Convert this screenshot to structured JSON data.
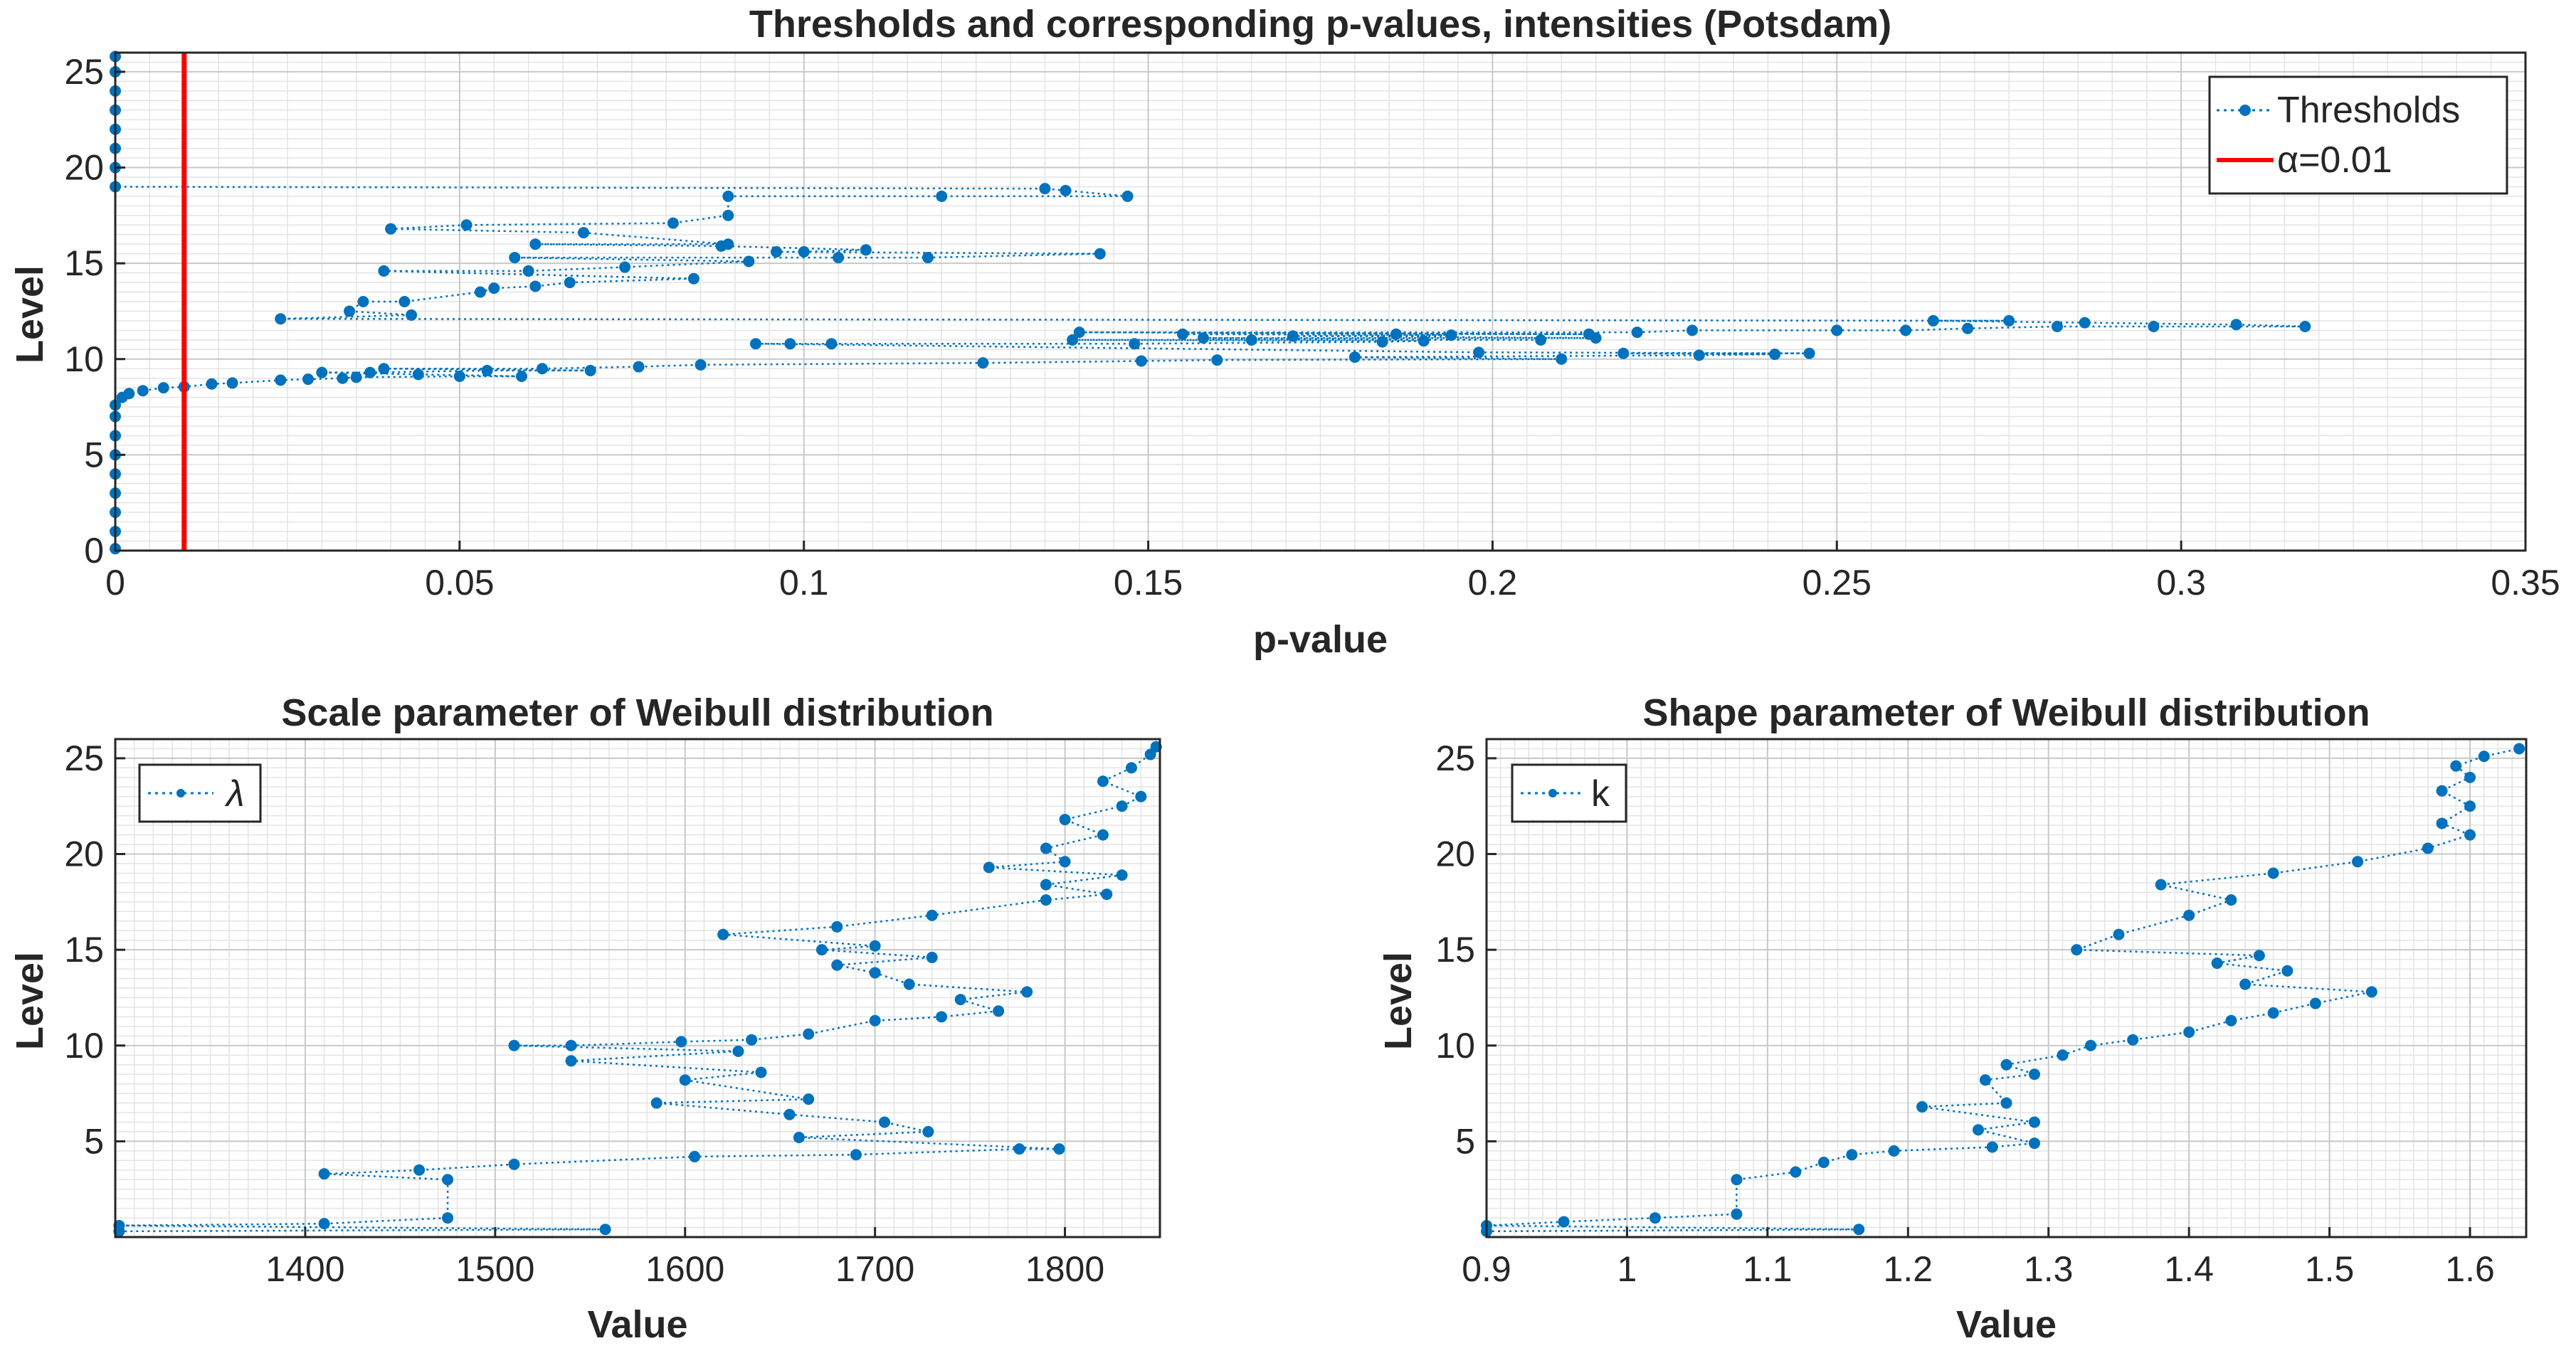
{
  "chart_data": [
    {
      "type": "scatter",
      "title": "Thresholds and corresponding p-values, intensities (Potsdam)",
      "xlabel": "p-value",
      "ylabel": "Level",
      "xlim": [
        0,
        0.35
      ],
      "ylim": [
        0,
        26
      ],
      "xticks": [
        0,
        0.05,
        0.1,
        0.15,
        0.2,
        0.25,
        0.3,
        0.35
      ],
      "xtick_labels": [
        "0",
        "0.05",
        "0.1",
        "0.15",
        "0.2",
        "0.25",
        "0.3",
        "0.35"
      ],
      "yticks": [
        0,
        5,
        10,
        15,
        20,
        25
      ],
      "ytick_labels": [
        "0",
        "5",
        "10",
        "15",
        "20",
        "25"
      ],
      "grid": true,
      "legend_position": "top-right",
      "series": [
        {
          "name": "Thresholds",
          "color": "#0072BD",
          "style": "dotted-line-with-markers",
          "points": [
            [
              0,
              0.1
            ],
            [
              0,
              1
            ],
            [
              0,
              2
            ],
            [
              0,
              3
            ],
            [
              0,
              4
            ],
            [
              0,
              5
            ],
            [
              0,
              6
            ],
            [
              0,
              7
            ],
            [
              0,
              7.6
            ],
            [
              0.001,
              8.0
            ],
            [
              0.002,
              8.2
            ],
            [
              0.004,
              8.35
            ],
            [
              0.007,
              8.5
            ],
            [
              0.01,
              8.55
            ],
            [
              0.014,
              8.7
            ],
            [
              0.017,
              8.75
            ],
            [
              0.024,
              8.9
            ],
            [
              0.028,
              8.95
            ],
            [
              0.03,
              9.3
            ],
            [
              0.033,
              9.0
            ],
            [
              0.035,
              9.05
            ],
            [
              0.037,
              9.3
            ],
            [
              0.039,
              9.5
            ],
            [
              0.044,
              9.2
            ],
            [
              0.05,
              9.1
            ],
            [
              0.054,
              9.4
            ],
            [
              0.059,
              9.1
            ],
            [
              0.062,
              9.5
            ],
            [
              0.069,
              9.4
            ],
            [
              0.076,
              9.6
            ],
            [
              0.085,
              9.7
            ],
            [
              0.126,
              9.8
            ],
            [
              0.149,
              9.9
            ],
            [
              0.16,
              9.95
            ],
            [
              0.18,
              10.1
            ],
            [
              0.198,
              10.35
            ],
            [
              0.21,
              10.0
            ],
            [
              0.219,
              10.3
            ],
            [
              0.23,
              10.2
            ],
            [
              0.241,
              10.25
            ],
            [
              0.246,
              10.3
            ],
            [
              0.093,
              10.8
            ],
            [
              0.098,
              10.8
            ],
            [
              0.104,
              10.8
            ],
            [
              0.139,
              11.0
            ],
            [
              0.148,
              10.8
            ],
            [
              0.158,
              11.1
            ],
            [
              0.165,
              11.0
            ],
            [
              0.184,
              10.9
            ],
            [
              0.19,
              10.95
            ],
            [
              0.207,
              11.0
            ],
            [
              0.215,
              11.1
            ],
            [
              0.14,
              11.4
            ],
            [
              0.155,
              11.3
            ],
            [
              0.171,
              11.2
            ],
            [
              0.186,
              11.3
            ],
            [
              0.194,
              11.25
            ],
            [
              0.214,
              11.3
            ],
            [
              0.221,
              11.4
            ],
            [
              0.229,
              11.5
            ],
            [
              0.25,
              11.5
            ],
            [
              0.26,
              11.5
            ],
            [
              0.269,
              11.6
            ],
            [
              0.282,
              11.7
            ],
            [
              0.296,
              11.7
            ],
            [
              0.318,
              11.7
            ],
            [
              0.024,
              12.1
            ],
            [
              0.264,
              12.0
            ],
            [
              0.275,
              12.0
            ],
            [
              0.286,
              11.9
            ],
            [
              0.308,
              11.8
            ],
            [
              0.034,
              12.5
            ],
            [
              0.043,
              12.3
            ],
            [
              0.036,
              13.0
            ],
            [
              0.053,
              13.5
            ],
            [
              0.042,
              13.0
            ],
            [
              0.055,
              13.7
            ],
            [
              0.061,
              13.8
            ],
            [
              0.066,
              14.0
            ],
            [
              0.084,
              14.2
            ],
            [
              0.039,
              14.6
            ],
            [
              0.06,
              14.6
            ],
            [
              0.074,
              14.8
            ],
            [
              0.092,
              15.1
            ],
            [
              0.058,
              15.3
            ],
            [
              0.088,
              15.9
            ],
            [
              0.105,
              15.3
            ],
            [
              0.118,
              15.3
            ],
            [
              0.096,
              15.6
            ],
            [
              0.143,
              15.5
            ],
            [
              0.061,
              16.0
            ],
            [
              0.089,
              16.0
            ],
            [
              0.1,
              15.6
            ],
            [
              0.109,
              15.7
            ],
            [
              0.04,
              16.8
            ],
            [
              0.051,
              17.0
            ],
            [
              0.068,
              16.6
            ],
            [
              0.081,
              17.1
            ],
            [
              0.089,
              17.5
            ],
            [
              0.089,
              18.5
            ],
            [
              0.12,
              18.5
            ],
            [
              0.135,
              18.9
            ],
            [
              0.138,
              18.8
            ],
            [
              0.147,
              18.5
            ],
            [
              0,
              19.0
            ],
            [
              0,
              20
            ],
            [
              0,
              21
            ],
            [
              0,
              22
            ],
            [
              0,
              23
            ],
            [
              0,
              24
            ],
            [
              0,
              25
            ],
            [
              0,
              25.8
            ]
          ]
        },
        {
          "name": "α=0.01",
          "color": "#FF0000",
          "style": "vertical-line",
          "x": 0.01
        }
      ],
      "legend": [
        "Thresholds",
        "α=0.01"
      ]
    },
    {
      "type": "scatter",
      "title": "Scale parameter of Weibull distribution",
      "xlabel": "Value",
      "ylabel": "Level",
      "xlim": [
        1300,
        1850
      ],
      "ylim": [
        0,
        26
      ],
      "xticks": [
        1400,
        1500,
        1600,
        1700,
        1800
      ],
      "xtick_labels": [
        "1400",
        "1500",
        "1600",
        "1700",
        "1800"
      ],
      "yticks": [
        5,
        10,
        15,
        20,
        25
      ],
      "ytick_labels": [
        "5",
        "10",
        "15",
        "20",
        "25"
      ],
      "grid": true,
      "legend_position": "top-left",
      "series": [
        {
          "name": "λ",
          "color": "#0072BD",
          "style": "dotted-line-with-markers",
          "points": [
            [
              1302,
              0.3
            ],
            [
              1558,
              0.4
            ],
            [
              1302,
              0.6
            ],
            [
              1410,
              0.7
            ],
            [
              1475,
              1.0
            ],
            [
              1475,
              3.0
            ],
            [
              1410,
              3.3
            ],
            [
              1460,
              3.5
            ],
            [
              1510,
              3.8
            ],
            [
              1605,
              4.2
            ],
            [
              1690,
              4.3
            ],
            [
              1776,
              4.6
            ],
            [
              1797,
              4.6
            ],
            [
              1660,
              5.2
            ],
            [
              1728,
              5.5
            ],
            [
              1705,
              6.0
            ],
            [
              1655,
              6.4
            ],
            [
              1585,
              7.0
            ],
            [
              1665,
              7.2
            ],
            [
              1600,
              8.2
            ],
            [
              1640,
              8.6
            ],
            [
              1540,
              9.2
            ],
            [
              1628,
              9.7
            ],
            [
              1510,
              10.0
            ],
            [
              1540,
              10.0
            ],
            [
              1598,
              10.2
            ],
            [
              1635,
              10.3
            ],
            [
              1665,
              10.6
            ],
            [
              1700,
              11.3
            ],
            [
              1735,
              11.5
            ],
            [
              1765,
              11.8
            ],
            [
              1745,
              12.4
            ],
            [
              1780,
              12.8
            ],
            [
              1718,
              13.2
            ],
            [
              1700,
              13.8
            ],
            [
              1680,
              14.2
            ],
            [
              1730,
              14.6
            ],
            [
              1672,
              15.0
            ],
            [
              1700,
              15.2
            ],
            [
              1620,
              15.8
            ],
            [
              1680,
              16.2
            ],
            [
              1730,
              16.8
            ],
            [
              1790,
              17.6
            ],
            [
              1822,
              17.9
            ],
            [
              1790,
              18.4
            ],
            [
              1830,
              18.9
            ],
            [
              1760,
              19.3
            ],
            [
              1800,
              19.6
            ],
            [
              1790,
              20.3
            ],
            [
              1820,
              21.0
            ],
            [
              1800,
              21.8
            ],
            [
              1830,
              22.5
            ],
            [
              1840,
              23.0
            ],
            [
              1820,
              23.8
            ],
            [
              1835,
              24.5
            ],
            [
              1845,
              25.2
            ],
            [
              1848,
              25.6
            ]
          ]
        }
      ],
      "legend": [
        "λ"
      ]
    },
    {
      "type": "scatter",
      "title": "Shape parameter of Weibull distribution",
      "xlabel": "Value",
      "ylabel": "Level",
      "xlim": [
        0.9,
        1.64
      ],
      "ylim": [
        0,
        26
      ],
      "xticks": [
        0.9,
        1,
        1.1,
        1.2,
        1.3,
        1.4,
        1.5,
        1.6
      ],
      "xtick_labels": [
        "0.9",
        "1",
        "1.1",
        "1.2",
        "1.3",
        "1.4",
        "1.5",
        "1.6"
      ],
      "yticks": [
        5,
        10,
        15,
        20,
        25
      ],
      "ytick_labels": [
        "5",
        "10",
        "15",
        "20",
        "25"
      ],
      "grid": true,
      "legend_position": "top-left",
      "series": [
        {
          "name": "k",
          "color": "#0072BD",
          "style": "dotted-line-with-markers",
          "points": [
            [
              0.9,
              0.3
            ],
            [
              1.165,
              0.4
            ],
            [
              0.9,
              0.6
            ],
            [
              0.955,
              0.8
            ],
            [
              1.02,
              1.0
            ],
            [
              1.078,
              1.2
            ],
            [
              1.078,
              3.0
            ],
            [
              1.12,
              3.4
            ],
            [
              1.14,
              3.9
            ],
            [
              1.16,
              4.3
            ],
            [
              1.19,
              4.5
            ],
            [
              1.26,
              4.7
            ],
            [
              1.29,
              4.9
            ],
            [
              1.25,
              5.6
            ],
            [
              1.29,
              6.0
            ],
            [
              1.21,
              6.8
            ],
            [
              1.27,
              7.0
            ],
            [
              1.255,
              8.2
            ],
            [
              1.29,
              8.5
            ],
            [
              1.27,
              9.0
            ],
            [
              1.31,
              9.5
            ],
            [
              1.33,
              10.0
            ],
            [
              1.36,
              10.3
            ],
            [
              1.4,
              10.7
            ],
            [
              1.43,
              11.3
            ],
            [
              1.46,
              11.7
            ],
            [
              1.49,
              12.2
            ],
            [
              1.53,
              12.8
            ],
            [
              1.44,
              13.2
            ],
            [
              1.47,
              13.9
            ],
            [
              1.42,
              14.3
            ],
            [
              1.45,
              14.7
            ],
            [
              1.32,
              15.0
            ],
            [
              1.35,
              15.8
            ],
            [
              1.4,
              16.8
            ],
            [
              1.43,
              17.6
            ],
            [
              1.38,
              18.4
            ],
            [
              1.46,
              19.0
            ],
            [
              1.52,
              19.6
            ],
            [
              1.57,
              20.3
            ],
            [
              1.6,
              21.0
            ],
            [
              1.58,
              21.6
            ],
            [
              1.6,
              22.5
            ],
            [
              1.58,
              23.3
            ],
            [
              1.6,
              24.0
            ],
            [
              1.59,
              24.6
            ],
            [
              1.61,
              25.1
            ],
            [
              1.635,
              25.5
            ]
          ]
        }
      ],
      "legend": [
        "k"
      ]
    }
  ]
}
